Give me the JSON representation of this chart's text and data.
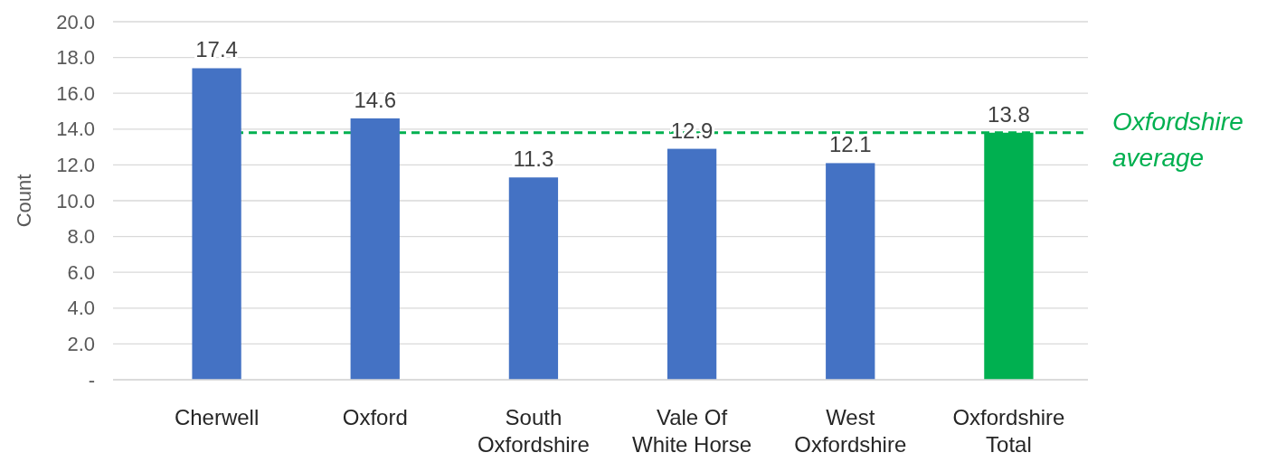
{
  "chart_data": {
    "type": "bar",
    "ylabel": "Count",
    "categories": [
      "Cherwell",
      "Oxford",
      "South\nOxfordshire",
      "Vale Of\nWhite Horse",
      "West\nOxfordshire",
      "Oxfordshire\nTotal"
    ],
    "values": [
      17.4,
      14.6,
      11.3,
      12.9,
      12.1,
      13.8
    ],
    "colors": [
      "#4472c4",
      "#4472c4",
      "#4472c4",
      "#4472c4",
      "#4472c4",
      "#00b050"
    ],
    "ylim": [
      0,
      20
    ],
    "yticks": [
      {
        "value": 0,
        "label": "-"
      },
      {
        "value": 2,
        "label": "2.0"
      },
      {
        "value": 4,
        "label": "4.0"
      },
      {
        "value": 6,
        "label": "6.0"
      },
      {
        "value": 8,
        "label": "8.0"
      },
      {
        "value": 10,
        "label": "10.0"
      },
      {
        "value": 12,
        "label": "12.0"
      },
      {
        "value": 14,
        "label": "14.0"
      },
      {
        "value": 16,
        "label": "16.0"
      },
      {
        "value": 18,
        "label": "18.0"
      },
      {
        "value": 20,
        "label": "20.0"
      }
    ],
    "grid": "y",
    "data_labels": true,
    "ref_lines": [
      {
        "axis": "y",
        "value": 13.8,
        "label": "Oxfordshire average",
        "color": "#00b050",
        "line_style": "dashed"
      }
    ]
  }
}
